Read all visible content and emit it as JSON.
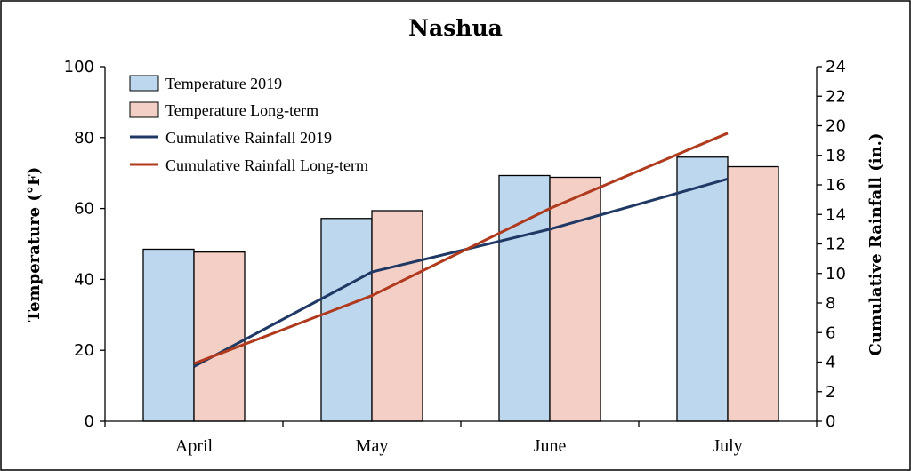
{
  "chart_data": {
    "type": "bar",
    "title": "Nashua",
    "categories": [
      "April",
      "May",
      "June",
      "July"
    ],
    "series": [
      {
        "name": "Temperature 2019",
        "kind": "bar",
        "axis": "left",
        "values": [
          48.5,
          57.2,
          69.3,
          74.5
        ]
      },
      {
        "name": "Temperature Long-term",
        "kind": "bar",
        "axis": "left",
        "values": [
          47.7,
          59.4,
          68.8,
          71.8
        ]
      },
      {
        "name": "Cumulative Rainfall 2019",
        "kind": "line",
        "axis": "right",
        "values": [
          3.7,
          10.1,
          13.0,
          16.4
        ]
      },
      {
        "name": "Cumulative Rainfall Long-term",
        "kind": "line",
        "axis": "right",
        "values": [
          3.9,
          8.5,
          14.4,
          19.5
        ]
      }
    ],
    "ylabel": "Temperature (°F)",
    "y2label": "Cumulative Rainfall (in.)",
    "ylim": [
      0,
      100
    ],
    "y2lim": [
      0,
      24
    ],
    "yticks": [
      "0",
      "20",
      "40",
      "60",
      "80",
      "100"
    ],
    "y2ticks": [
      "0",
      "2",
      "4",
      "6",
      "8",
      "10",
      "12",
      "14",
      "16",
      "18",
      "20",
      "22",
      "24"
    ],
    "grid": false,
    "legend_position": "top-left",
    "colors": {
      "Temperature 2019": "#bdd7ee",
      "Temperature Long-term": "#f4cfc5",
      "Cumulative Rainfall 2019": "#1f3864",
      "Cumulative Rainfall Long-term": "#b03a1e",
      "bar_outline": "#000000",
      "frame": "#000000"
    }
  }
}
